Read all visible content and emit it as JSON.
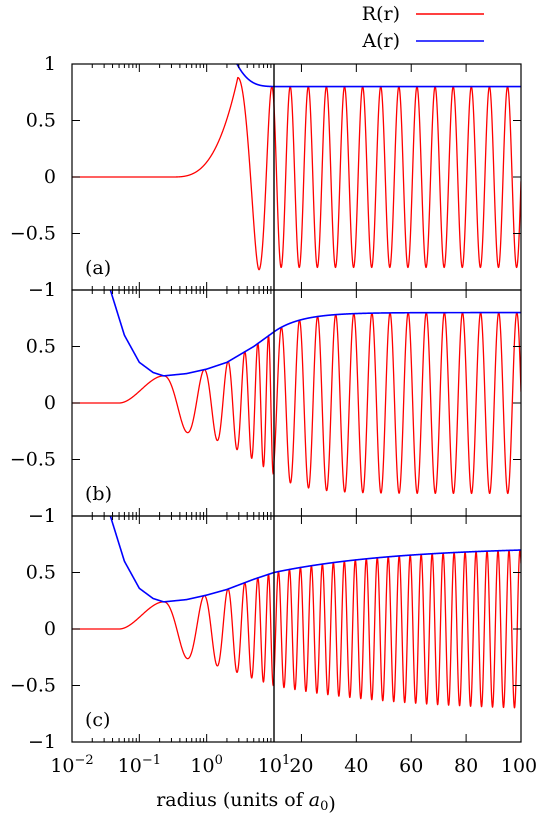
{
  "chart_data": {
    "type": "line",
    "xlabel": "radius (units of a0)",
    "x_axis": {
      "log_segment": {
        "range": [
          0.01,
          10
        ],
        "tick_labels": [
          "10^-2",
          "10^-1",
          "10^0",
          "10^1"
        ]
      },
      "linear_segment": {
        "range": [
          10,
          100
        ],
        "tick_labels": [
          "20",
          "40",
          "60",
          "80",
          "100"
        ]
      }
    },
    "ylim": [
      -1,
      1
    ],
    "y_tick_labels": [
      "1",
      "0.5",
      "0",
      "−0.5",
      "−1"
    ],
    "legend": {
      "position": "top-right",
      "entries": [
        {
          "label": "R(r)",
          "color": "#ff0000"
        },
        {
          "label": "A(r)",
          "color": "#0000ff"
        }
      ]
    },
    "panels": [
      {
        "label": "(a)",
        "series": [
          {
            "name": "R(r)",
            "color": "#ff0000",
            "description": "zero for r<0.3, rises to 0.88 near r=3, dips to -0.82 near r=6, then oscillates with amplitude 0.80",
            "x": [
              0.01,
              0.3,
              1,
              2,
              3,
              4.5,
              6,
              10,
              100
            ],
            "y": [
              0,
              0,
              0.05,
              0.5,
              0.88,
              0.2,
              -0.82,
              0.8,
              0.8
            ]
          },
          {
            "name": "A(r)",
            "color": "#0000ff",
            "description": "envelope dropping from above 1 at r=2.5 to 0.80 by r=10, flat thereafter",
            "x": [
              2.5,
              4,
              6,
              10,
              100
            ],
            "y": [
              1.05,
              0.86,
              0.82,
              0.8,
              0.8
            ]
          }
        ]
      },
      {
        "label": "(b)",
        "series": [
          {
            "name": "R(r)",
            "color": "#ff0000",
            "description": "zero until 0.05, first max 0.24 at r=0.23, first min -0.27 at r=0.55, oscillations growing to amplitude 0.80",
            "x": [
              0.01,
              0.05,
              0.23,
              0.55,
              1,
              10,
              100
            ],
            "y": [
              0,
              0,
              0.24,
              -0.27,
              0.3,
              0.6,
              0.8
            ]
          },
          {
            "name": "A(r)",
            "color": "#0000ff",
            "description": "envelope from 1 at r=0.035, min 0.24 at r=0.23, rising to 0.80",
            "x": [
              0.035,
              0.08,
              0.23,
              1,
              5,
              10,
              30,
              100
            ],
            "y": [
              1.05,
              0.4,
              0.24,
              0.3,
              0.5,
              0.63,
              0.79,
              0.8
            ]
          }
        ]
      },
      {
        "label": "(c)",
        "series": [
          {
            "name": "R(r)",
            "color": "#ff0000",
            "description": "zero until 0.05, first max 0.24 at r=0.23, first min -0.27 at r=0.55, oscillations growing slowly to amplitude 0.73",
            "x": [
              0.01,
              0.05,
              0.23,
              0.55,
              1,
              10,
              100
            ],
            "y": [
              0,
              0,
              0.24,
              -0.27,
              0.3,
              0.5,
              0.73
            ]
          },
          {
            "name": "A(r)",
            "color": "#0000ff",
            "description": "envelope from 1 at r=0.035, min 0.24 at r=0.23, slowly rising to 0.73",
            "x": [
              0.035,
              0.08,
              0.23,
              1,
              5,
              10,
              30,
              60,
              100
            ],
            "y": [
              1.05,
              0.4,
              0.24,
              0.3,
              0.44,
              0.5,
              0.6,
              0.68,
              0.73
            ]
          }
        ]
      }
    ]
  }
}
